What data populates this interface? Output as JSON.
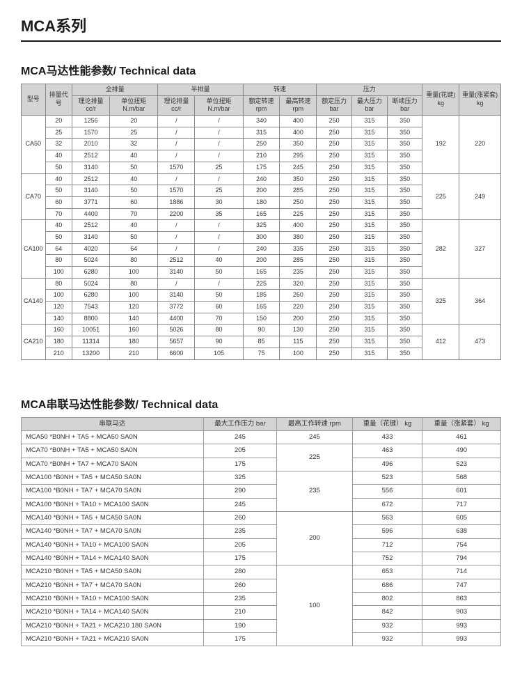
{
  "pageTitle": "MCA系列",
  "table1": {
    "title": "MCA马达性能参数/ Technical data",
    "headers": {
      "model": "型号",
      "code": "排量代号",
      "full": "全排量",
      "half": "半排量",
      "speed": "转速",
      "pressure": "压力",
      "wt1": "重量(花键) kg",
      "wt2": "重量(涨紧套) kg",
      "theoDisp": "理论排量 cc/r",
      "unitTorque": "单位扭矩 N.m/bar",
      "ratedSpeed": "额定转速 rpm",
      "maxSpeed": "最高转速 rpm",
      "ratedPress": "额定压力 bar",
      "maxPress": "最大压力 bar",
      "intPress": "断续压力 bar"
    },
    "groups": [
      {
        "model": "CA50",
        "wt1": "192",
        "wt2": "220",
        "rows": [
          {
            "c": "20",
            "a": "1256",
            "b": "20",
            "h1": "/",
            "h2": "/",
            "r": "340",
            "m": "400",
            "p1": "250",
            "p2": "315",
            "p3": "350"
          },
          {
            "c": "25",
            "a": "1570",
            "b": "25",
            "h1": "/",
            "h2": "/",
            "r": "315",
            "m": "400",
            "p1": "250",
            "p2": "315",
            "p3": "350"
          },
          {
            "c": "32",
            "a": "2010",
            "b": "32",
            "h1": "/",
            "h2": "/",
            "r": "250",
            "m": "350",
            "p1": "250",
            "p2": "315",
            "p3": "350"
          },
          {
            "c": "40",
            "a": "2512",
            "b": "40",
            "h1": "/",
            "h2": "/",
            "r": "210",
            "m": "295",
            "p1": "250",
            "p2": "315",
            "p3": "350"
          },
          {
            "c": "50",
            "a": "3140",
            "b": "50",
            "h1": "1570",
            "h2": "25",
            "r": "175",
            "m": "245",
            "p1": "250",
            "p2": "315",
            "p3": "350"
          }
        ]
      },
      {
        "model": "CA70",
        "wt1": "225",
        "wt2": "249",
        "rows": [
          {
            "c": "40",
            "a": "2512",
            "b": "40",
            "h1": "/",
            "h2": "/",
            "r": "240",
            "m": "350",
            "p1": "250",
            "p2": "315",
            "p3": "350"
          },
          {
            "c": "50",
            "a": "3140",
            "b": "50",
            "h1": "1570",
            "h2": "25",
            "r": "200",
            "m": "285",
            "p1": "250",
            "p2": "315",
            "p3": "350"
          },
          {
            "c": "60",
            "a": "3771",
            "b": "60",
            "h1": "1886",
            "h2": "30",
            "r": "180",
            "m": "250",
            "p1": "250",
            "p2": "315",
            "p3": "350"
          },
          {
            "c": "70",
            "a": "4400",
            "b": "70",
            "h1": "2200",
            "h2": "35",
            "r": "165",
            "m": "225",
            "p1": "250",
            "p2": "315",
            "p3": "350"
          }
        ]
      },
      {
        "model": "CA100",
        "wt1": "282",
        "wt2": "327",
        "rows": [
          {
            "c": "40",
            "a": "2512",
            "b": "40",
            "h1": "/",
            "h2": "/",
            "r": "325",
            "m": "400",
            "p1": "250",
            "p2": "315",
            "p3": "350"
          },
          {
            "c": "50",
            "a": "3140",
            "b": "50",
            "h1": "/",
            "h2": "/",
            "r": "300",
            "m": "380",
            "p1": "250",
            "p2": "315",
            "p3": "350"
          },
          {
            "c": "64",
            "a": "4020",
            "b": "64",
            "h1": "/",
            "h2": "/",
            "r": "240",
            "m": "335",
            "p1": "250",
            "p2": "315",
            "p3": "350"
          },
          {
            "c": "80",
            "a": "5024",
            "b": "80",
            "h1": "2512",
            "h2": "40",
            "r": "200",
            "m": "285",
            "p1": "250",
            "p2": "315",
            "p3": "350"
          },
          {
            "c": "100",
            "a": "6280",
            "b": "100",
            "h1": "3140",
            "h2": "50",
            "r": "165",
            "m": "235",
            "p1": "250",
            "p2": "315",
            "p3": "350"
          }
        ]
      },
      {
        "model": "CA140",
        "wt1": "325",
        "wt2": "364",
        "rows": [
          {
            "c": "80",
            "a": "5024",
            "b": "80",
            "h1": "/",
            "h2": "/",
            "r": "225",
            "m": "320",
            "p1": "250",
            "p2": "315",
            "p3": "350"
          },
          {
            "c": "100",
            "a": "6280",
            "b": "100",
            "h1": "3140",
            "h2": "50",
            "r": "185",
            "m": "260",
            "p1": "250",
            "p2": "315",
            "p3": "350"
          },
          {
            "c": "120",
            "a": "7543",
            "b": "120",
            "h1": "3772",
            "h2": "60",
            "r": "165",
            "m": "220",
            "p1": "250",
            "p2": "315",
            "p3": "350"
          },
          {
            "c": "140",
            "a": "8800",
            "b": "140",
            "h1": "4400",
            "h2": "70",
            "r": "150",
            "m": "200",
            "p1": "250",
            "p2": "315",
            "p3": "350"
          }
        ]
      },
      {
        "model": "CA210",
        "wt1": "412",
        "wt2": "473",
        "rows": [
          {
            "c": "160",
            "a": "10051",
            "b": "160",
            "h1": "5026",
            "h2": "80",
            "r": "90",
            "m": "130",
            "p1": "250",
            "p2": "315",
            "p3": "350"
          },
          {
            "c": "180",
            "a": "11314",
            "b": "180",
            "h1": "5657",
            "h2": "90",
            "r": "85",
            "m": "115",
            "p1": "250",
            "p2": "315",
            "p3": "350"
          },
          {
            "c": "210",
            "a": "13200",
            "b": "210",
            "h1": "6600",
            "h2": "105",
            "r": "75",
            "m": "100",
            "p1": "250",
            "p2": "315",
            "p3": "350"
          }
        ]
      }
    ]
  },
  "table2": {
    "title": "MCA串联马达性能参数/ Technical data",
    "headers": {
      "name": "串联马达",
      "maxPress": "最大工作压力 bar",
      "maxSpeed": "最高工作转速 rpm",
      "wt1": "重量（花键） kg",
      "wt2": "重量（涨紧套） kg"
    },
    "speedGroups": [
      {
        "speed": "245",
        "rows": [
          {
            "n": "MCA50 *B0NH + TA5 + MCA50 SA0N",
            "p": "245",
            "w1": "433",
            "w2": "461"
          }
        ]
      },
      {
        "speed": "225",
        "rows": [
          {
            "n": "MCA70 *B0NH + TA5 + MCA50 SA0N",
            "p": "205",
            "w1": "463",
            "w2": "490"
          },
          {
            "n": "MCA70 *B0NH + TA7 + MCA70 SA0N",
            "p": "175",
            "w1": "496",
            "w2": "523"
          }
        ]
      },
      {
        "speed": "235",
        "rows": [
          {
            "n": "MCA100 *B0NH + TA5 + MCA50 SA0N",
            "p": "325",
            "w1": "523",
            "w2": "568"
          },
          {
            "n": "MCA100 *B0NH + TA7 + MCA70 SA0N",
            "p": "290",
            "w1": "556",
            "w2": "601"
          },
          {
            "n": "MCA100 *B0NH + TA10 + MCA100 SA0N",
            "p": "245",
            "w1": "672",
            "w2": "717"
          }
        ]
      },
      {
        "speed": "200",
        "rows": [
          {
            "n": "MCA140 *B0NH + TA5 + MCA50 SA0N",
            "p": "260",
            "w1": "563",
            "w2": "605"
          },
          {
            "n": "MCA140 *B0NH + TA7 + MCA70 SA0N",
            "p": "235",
            "w1": "596",
            "w2": "638"
          },
          {
            "n": "MCA140 *B0NH + TA10 + MCA100 SA0N",
            "p": "205",
            "w1": "712",
            "w2": "754"
          },
          {
            "n": "MCA140 *B0NH + TA14 + MCA140 SA0N",
            "p": "175",
            "w1": "752",
            "w2": "794"
          }
        ]
      },
      {
        "speed": "100",
        "rows": [
          {
            "n": "MCA210 *B0NH + TA5 + MCA50 SA0N",
            "p": "280",
            "w1": "653",
            "w2": "714"
          },
          {
            "n": "MCA210 *B0NH + TA7 + MCA70 SA0N",
            "p": "260",
            "w1": "686",
            "w2": "747"
          },
          {
            "n": "MCA210 *B0NH + TA10 + MCA100 SA0N",
            "p": "235",
            "w1": "802",
            "w2": "863"
          },
          {
            "n": "MCA210 *B0NH + TA14 + MCA140 SA0N",
            "p": "210",
            "w1": "842",
            "w2": "903"
          },
          {
            "n": "MCA210 *B0NH + TA21 + MCA210 180 SA0N",
            "p": "190",
            "w1": "932",
            "w2": "993"
          },
          {
            "n": "MCA210 *B0NH + TA21 + MCA210 SA0N",
            "p": "175",
            "w1": "932",
            "w2": "993"
          }
        ]
      }
    ]
  }
}
